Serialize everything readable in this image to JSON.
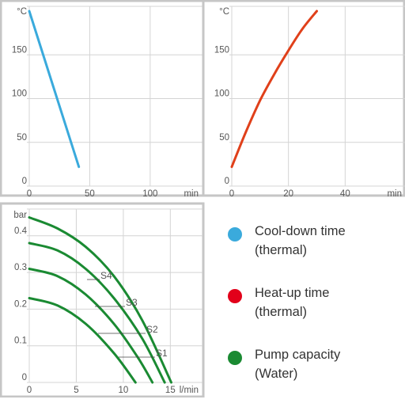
{
  "chart_data": [
    {
      "type": "line",
      "xlabel": "",
      "ylabel": "",
      "x_unit": "min",
      "y_unit": "°C",
      "xlim": [
        0,
        140
      ],
      "ylim": [
        0,
        200
      ],
      "x_ticks": [
        0,
        50,
        100
      ],
      "x_tick_labels": [
        "0",
        "50",
        "100"
      ],
      "y_ticks": [
        0,
        50,
        100,
        150
      ],
      "y_tick_labels": [
        "0",
        "50",
        "100",
        "150"
      ],
      "grid": true,
      "series": [
        {
          "color": "#3aaadc",
          "x": [
            0,
            41
          ],
          "y": [
            200,
            22
          ]
        }
      ]
    },
    {
      "type": "line",
      "xlabel": "",
      "ylabel": "",
      "x_unit": "min",
      "y_unit": "°C",
      "xlim": [
        0,
        60
      ],
      "ylim": [
        0,
        200
      ],
      "x_ticks": [
        0,
        20,
        40
      ],
      "x_tick_labels": [
        "0",
        "20",
        "40"
      ],
      "y_ticks": [
        0,
        50,
        100,
        150
      ],
      "y_tick_labels": [
        "0",
        "50",
        "100",
        "150"
      ],
      "grid": true,
      "series": [
        {
          "color": "#e0401a",
          "x": [
            0,
            5,
            10,
            15,
            20,
            25,
            30
          ],
          "y": [
            22,
            62,
            98,
            128,
            155,
            180,
            200
          ]
        }
      ]
    },
    {
      "type": "line",
      "xlabel": "",
      "ylabel": "",
      "x_unit": "l/min",
      "y_unit": "bar",
      "xlim": [
        0,
        18
      ],
      "ylim": [
        0,
        0.46
      ],
      "x_ticks": [
        0,
        5,
        10,
        15
      ],
      "x_tick_labels": [
        "0",
        "5",
        "10",
        "15"
      ],
      "y_ticks": [
        0,
        0.1,
        0.2,
        0.3,
        0.4
      ],
      "y_tick_labels": [
        "0",
        "0.1",
        "0.2",
        "0.3",
        "0.4"
      ],
      "grid": true,
      "series": [
        {
          "name": "S1",
          "color": "#1a8a32",
          "x": [
            0,
            3,
            6,
            9,
            11.3
          ],
          "y": [
            0.23,
            0.21,
            0.16,
            0.08,
            0
          ]
        },
        {
          "name": "S2",
          "color": "#1a8a32",
          "x": [
            0,
            3,
            6,
            9,
            11.5,
            13.1
          ],
          "y": [
            0.31,
            0.29,
            0.24,
            0.16,
            0.07,
            0
          ]
        },
        {
          "name": "S3",
          "color": "#1a8a32",
          "x": [
            0,
            3,
            6,
            9,
            12,
            14.4
          ],
          "y": [
            0.38,
            0.36,
            0.31,
            0.23,
            0.12,
            0
          ]
        },
        {
          "name": "S4",
          "color": "#1a8a32",
          "x": [
            0,
            3,
            6,
            9,
            12,
            15.1
          ],
          "y": [
            0.45,
            0.42,
            0.37,
            0.29,
            0.17,
            0
          ]
        }
      ]
    }
  ],
  "legend": {
    "items": [
      {
        "line1": "Cool-down time",
        "line2": "(thermal)",
        "color": "#3aaadc"
      },
      {
        "line1": "Heat-up time",
        "line2": "(thermal)",
        "color": "#e2001a"
      },
      {
        "line1": "Pump capacity",
        "line2": "(Water)",
        "color": "#1a8a32"
      }
    ]
  }
}
